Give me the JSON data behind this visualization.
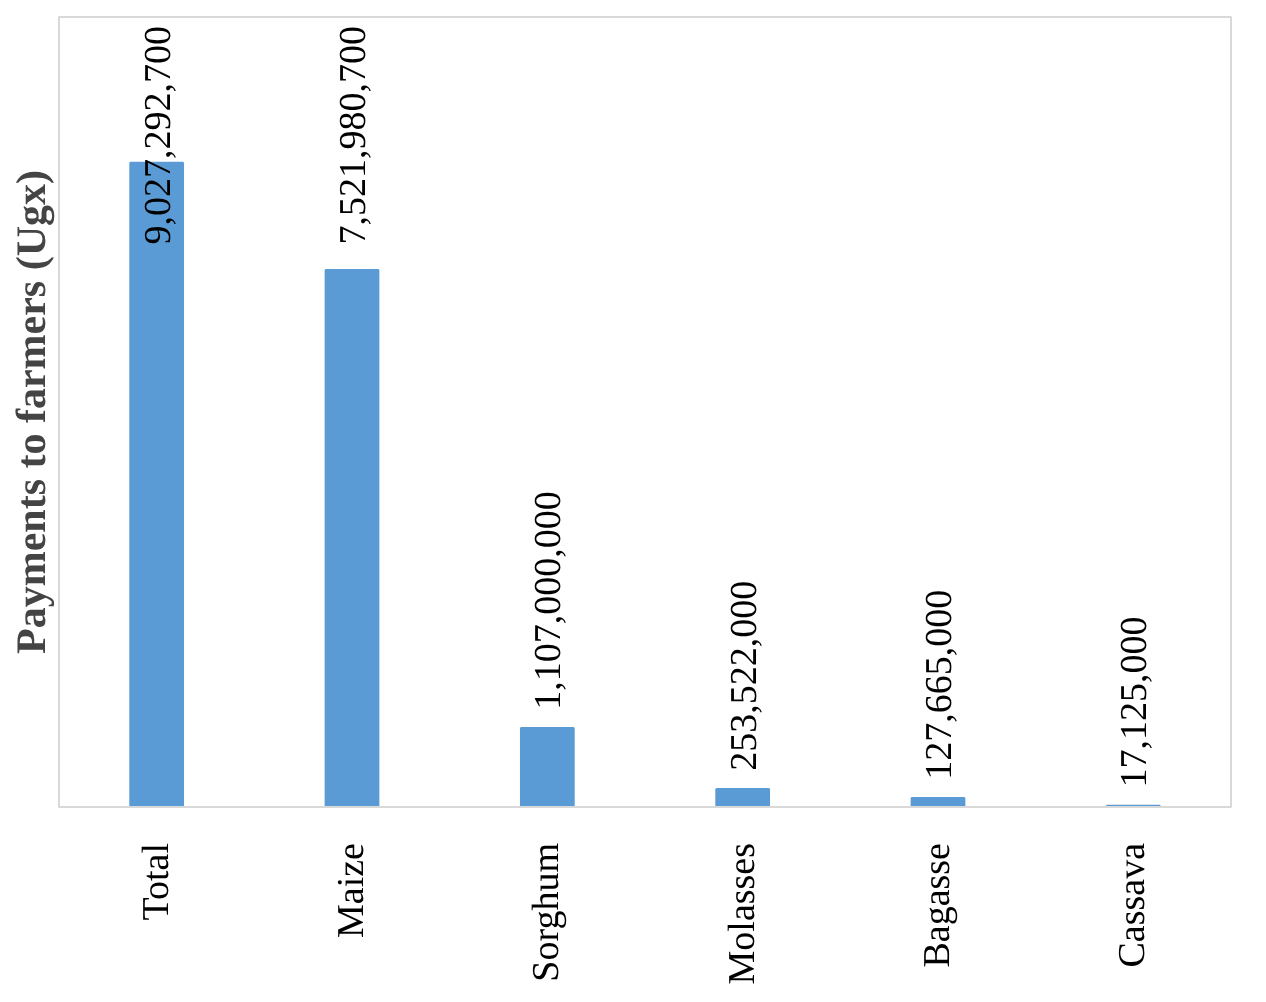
{
  "chart_data": {
    "type": "bar",
    "ylabel": "Payments to farmers (Ugx)",
    "categories": [
      "Total",
      "Maize",
      "Sorghum",
      "Molasses",
      "Bagasse",
      "Cassava"
    ],
    "values": [
      9027292700,
      7521980700,
      1107000000,
      253522000,
      127665000,
      17125000
    ],
    "color": "#5b9bd5",
    "value_labels": [
      "9,027,292,700",
      "7,521,980,700",
      "1,107,000,000",
      "253,522,000",
      "127,665,000",
      "17,125,000"
    ],
    "tick_labels": "x",
    "grid": false
  }
}
